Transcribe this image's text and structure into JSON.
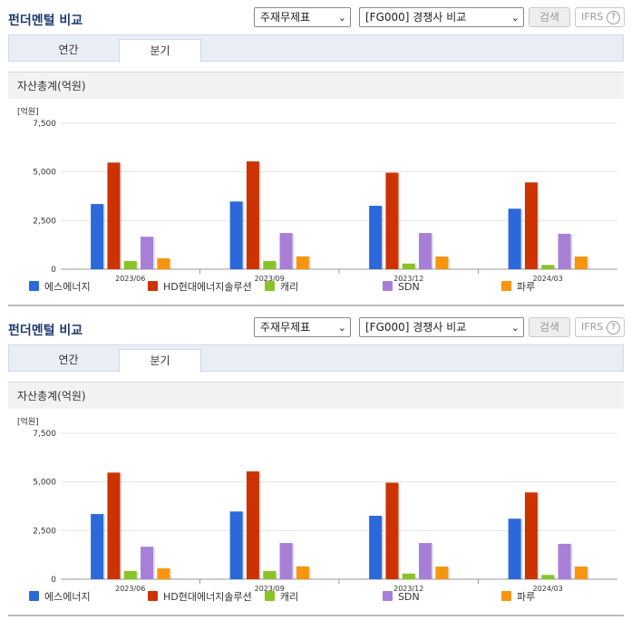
{
  "panels": [
    {
      "title": "펀더멘털 비교",
      "select_statement": "주재무제표",
      "select_compare": "[FG000] 경쟁사 비교",
      "search_label": "검색",
      "ifrs_label": "IFRS",
      "ifrs_help": "?",
      "tabs": [
        "연간",
        "분기"
      ],
      "active_tab": "분기",
      "section_title": "자산총계(억원)"
    },
    {
      "title": "펀더멘털 비교",
      "select_statement": "주재무제표",
      "select_compare": "[FG000] 경쟁사 비교",
      "search_label": "검색",
      "ifrs_label": "IFRS",
      "ifrs_help": "?",
      "tabs": [
        "연간",
        "분기"
      ],
      "active_tab": "분기",
      "section_title": "자산총계(억원)"
    }
  ],
  "chart_data": [
    {
      "type": "bar",
      "unit_label": "[억원]",
      "categories": [
        "2023/06",
        "2023/09",
        "2023/12",
        "2024/03"
      ],
      "ylim": [
        0,
        7500
      ],
      "yticks": [
        "0",
        "2,500",
        "5,000",
        "7,500"
      ],
      "ytick_values": [
        0,
        2500,
        5000,
        7500
      ],
      "grid": true,
      "legend_position": "bottom",
      "series": [
        {
          "name": "에스에너지",
          "color": "#2b68d9",
          "values": [
            3350,
            3480,
            3260,
            3110
          ]
        },
        {
          "name": "HD현대에너지솔루션",
          "color": "#cc3300",
          "values": [
            5480,
            5540,
            4960,
            4460
          ]
        },
        {
          "name": "캐리",
          "color": "#88c425",
          "values": [
            420,
            420,
            290,
            220
          ]
        },
        {
          "name": "SDN",
          "color": "#a87fd6",
          "values": [
            1670,
            1860,
            1860,
            1820
          ]
        },
        {
          "name": "파루",
          "color": "#f7950f",
          "values": [
            560,
            660,
            650,
            650
          ]
        }
      ]
    },
    {
      "type": "bar",
      "unit_label": "[억원]",
      "categories": [
        "2023/06",
        "2023/09",
        "2023/12",
        "2024/03"
      ],
      "ylim": [
        0,
        7500
      ],
      "yticks": [
        "0",
        "2,500",
        "5,000",
        "7,500"
      ],
      "ytick_values": [
        0,
        2500,
        5000,
        7500
      ],
      "grid": true,
      "legend_position": "bottom",
      "series": [
        {
          "name": "에스에너지",
          "color": "#2b68d9",
          "values": [
            3350,
            3480,
            3260,
            3110
          ]
        },
        {
          "name": "HD현대에너지솔루션",
          "color": "#cc3300",
          "values": [
            5480,
            5540,
            4960,
            4460
          ]
        },
        {
          "name": "캐리",
          "color": "#88c425",
          "values": [
            420,
            420,
            290,
            220
          ]
        },
        {
          "name": "SDN",
          "color": "#a87fd6",
          "values": [
            1670,
            1860,
            1860,
            1820
          ]
        },
        {
          "name": "파루",
          "color": "#f7950f",
          "values": [
            560,
            660,
            650,
            650
          ]
        }
      ]
    }
  ]
}
